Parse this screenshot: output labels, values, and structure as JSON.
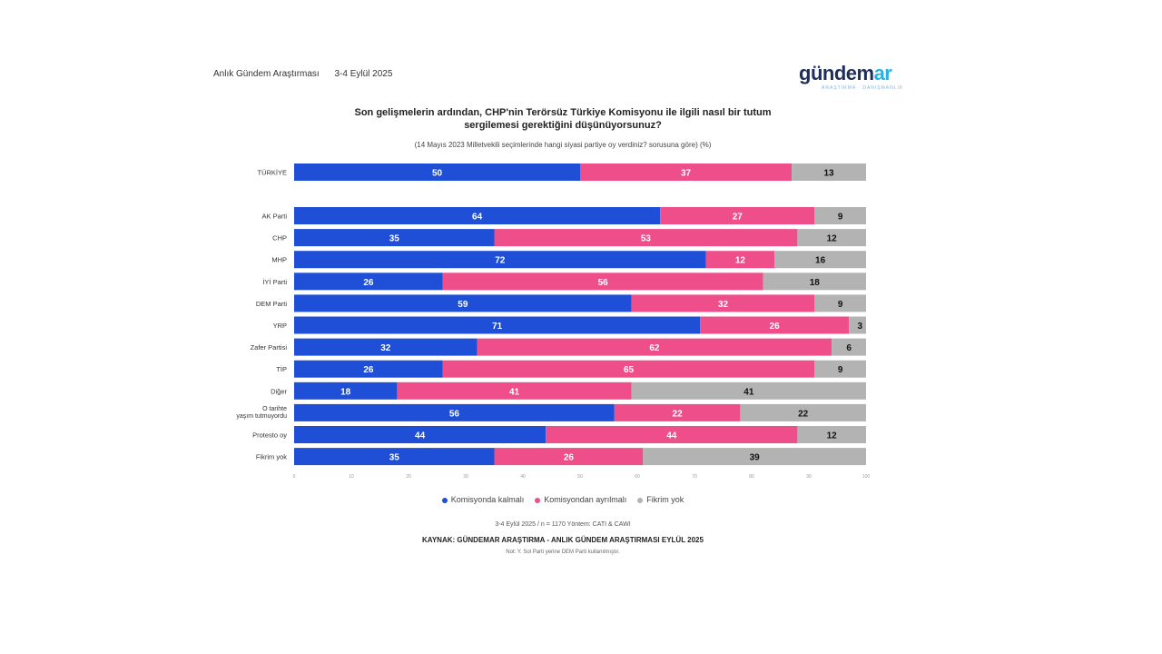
{
  "header": {
    "survey_name": "Anlık Gündem Araştırması",
    "survey_date": "3-4 Eylül 2025",
    "logo_main": "gündem",
    "logo_accent": "ar",
    "logo_sub": "ARAŞTIRMA · DANIŞMANLIK"
  },
  "title_line1": "Son gelişmelerin ardından, CHP'nin Terörsüz Türkiye Komisyonu ile ilgili nasıl bir tutum",
  "title_line2": "sergilemesi gerektiğini düşünüyorsunuz?",
  "subtitle": "(14 Mayıs 2023 Milletvekili seçimlerinde hangi siyasi partiye oy verdiniz? sorusuna göre) (%)",
  "colors": {
    "blue": "#1f4fd6",
    "pink": "#ee4f8a",
    "gray": "#b3b3b3"
  },
  "chart_data": {
    "type": "bar",
    "orientation": "horizontal",
    "stacked": true,
    "categories": [
      "TÜRKİYE",
      "AK Parti",
      "CHP",
      "MHP",
      "İYİ Parti",
      "DEM Parti",
      "YRP",
      "Zafer Partisi",
      "TİP",
      "Diğer",
      "O tarihte yaşım tutmuyordu",
      "Protesto oy",
      "Fikrim yok"
    ],
    "series": [
      {
        "name": "Komisyonda kalmalı",
        "color": "#1f4fd6",
        "values": [
          50,
          64,
          35,
          72,
          26,
          59,
          71,
          32,
          26,
          18,
          56,
          44,
          35
        ]
      },
      {
        "name": "Komisyondan ayrılmalı",
        "color": "#ee4f8a",
        "values": [
          37,
          27,
          53,
          12,
          56,
          32,
          26,
          62,
          65,
          41,
          22,
          44,
          26
        ]
      },
      {
        "name": "Fikrim yok",
        "color": "#b3b3b3",
        "values": [
          13,
          9,
          12,
          16,
          18,
          9,
          3,
          6,
          9,
          41,
          22,
          12,
          39
        ]
      }
    ],
    "xlim": [
      0,
      100
    ],
    "x_ticks": [
      "0",
      "10",
      "20",
      "30",
      "40",
      "50",
      "60",
      "70",
      "80",
      "90",
      "100"
    ],
    "legend_position": "bottom"
  },
  "footer": {
    "line1": "3-4 Eylül 2025 / n = 1170 Yöntem: CATI & CAWI",
    "line2": "KAYNAK: GÜNDEMAR ARAŞTIRMA - ANLIK GÜNDEM ARAŞTIRMASI EYLÜL 2025",
    "line3": "Not: Y. Sol Parti yerine DEM Parti kullanılmıştır."
  }
}
